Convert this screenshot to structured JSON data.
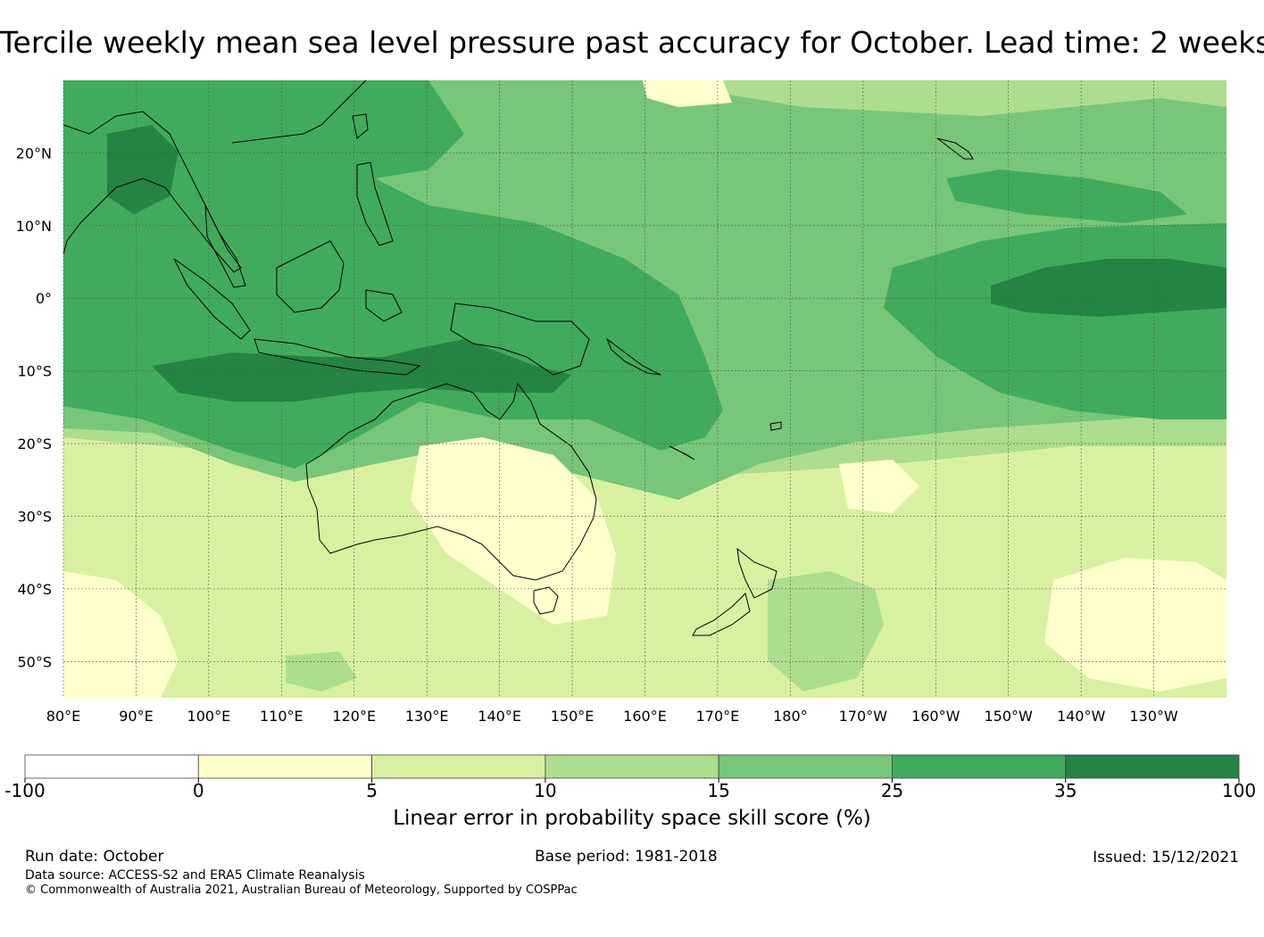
{
  "title": "Tercile weekly mean sea level pressure past accuracy for October. Lead time: 2 weeks",
  "map": {
    "lat_labels": [
      "20°N",
      "10°N",
      "0°",
      "10°S",
      "20°S",
      "30°S",
      "40°S",
      "50°S"
    ],
    "lon_labels": [
      "80°E",
      "90°E",
      "100°E",
      "110°E",
      "120°E",
      "130°E",
      "140°E",
      "150°E",
      "160°E",
      "170°E",
      "180°",
      "170°W",
      "160°W",
      "150°W",
      "140°W",
      "130°W"
    ],
    "extent": {
      "lon_min": 80,
      "lon_max": 240,
      "lat_min": -55,
      "lat_max": 30
    }
  },
  "colorbar": {
    "ticks": [
      "-100",
      "0",
      "5",
      "10",
      "15",
      "25",
      "35",
      "100"
    ],
    "colors": [
      "#ffffff",
      "#ffffcc",
      "#d9f0a3",
      "#addd8e",
      "#78c679",
      "#41ab5d",
      "#238443"
    ],
    "label": "Linear error in probability space skill score (%)"
  },
  "footer": {
    "run_date": "Run date: October",
    "base_period": "Base period: 1981-2018",
    "issued": "Issued: 15/12/2021",
    "data_source": "Data source: ACCESS-S2 and ERA5 Climate Reanalysis",
    "copyright": "© Commonwealth of Australia 2021, Australian Bureau of Meteorology, Supported by COSPPac"
  },
  "colors": {
    "land_outline": "#000000",
    "gridline": "#555555"
  }
}
